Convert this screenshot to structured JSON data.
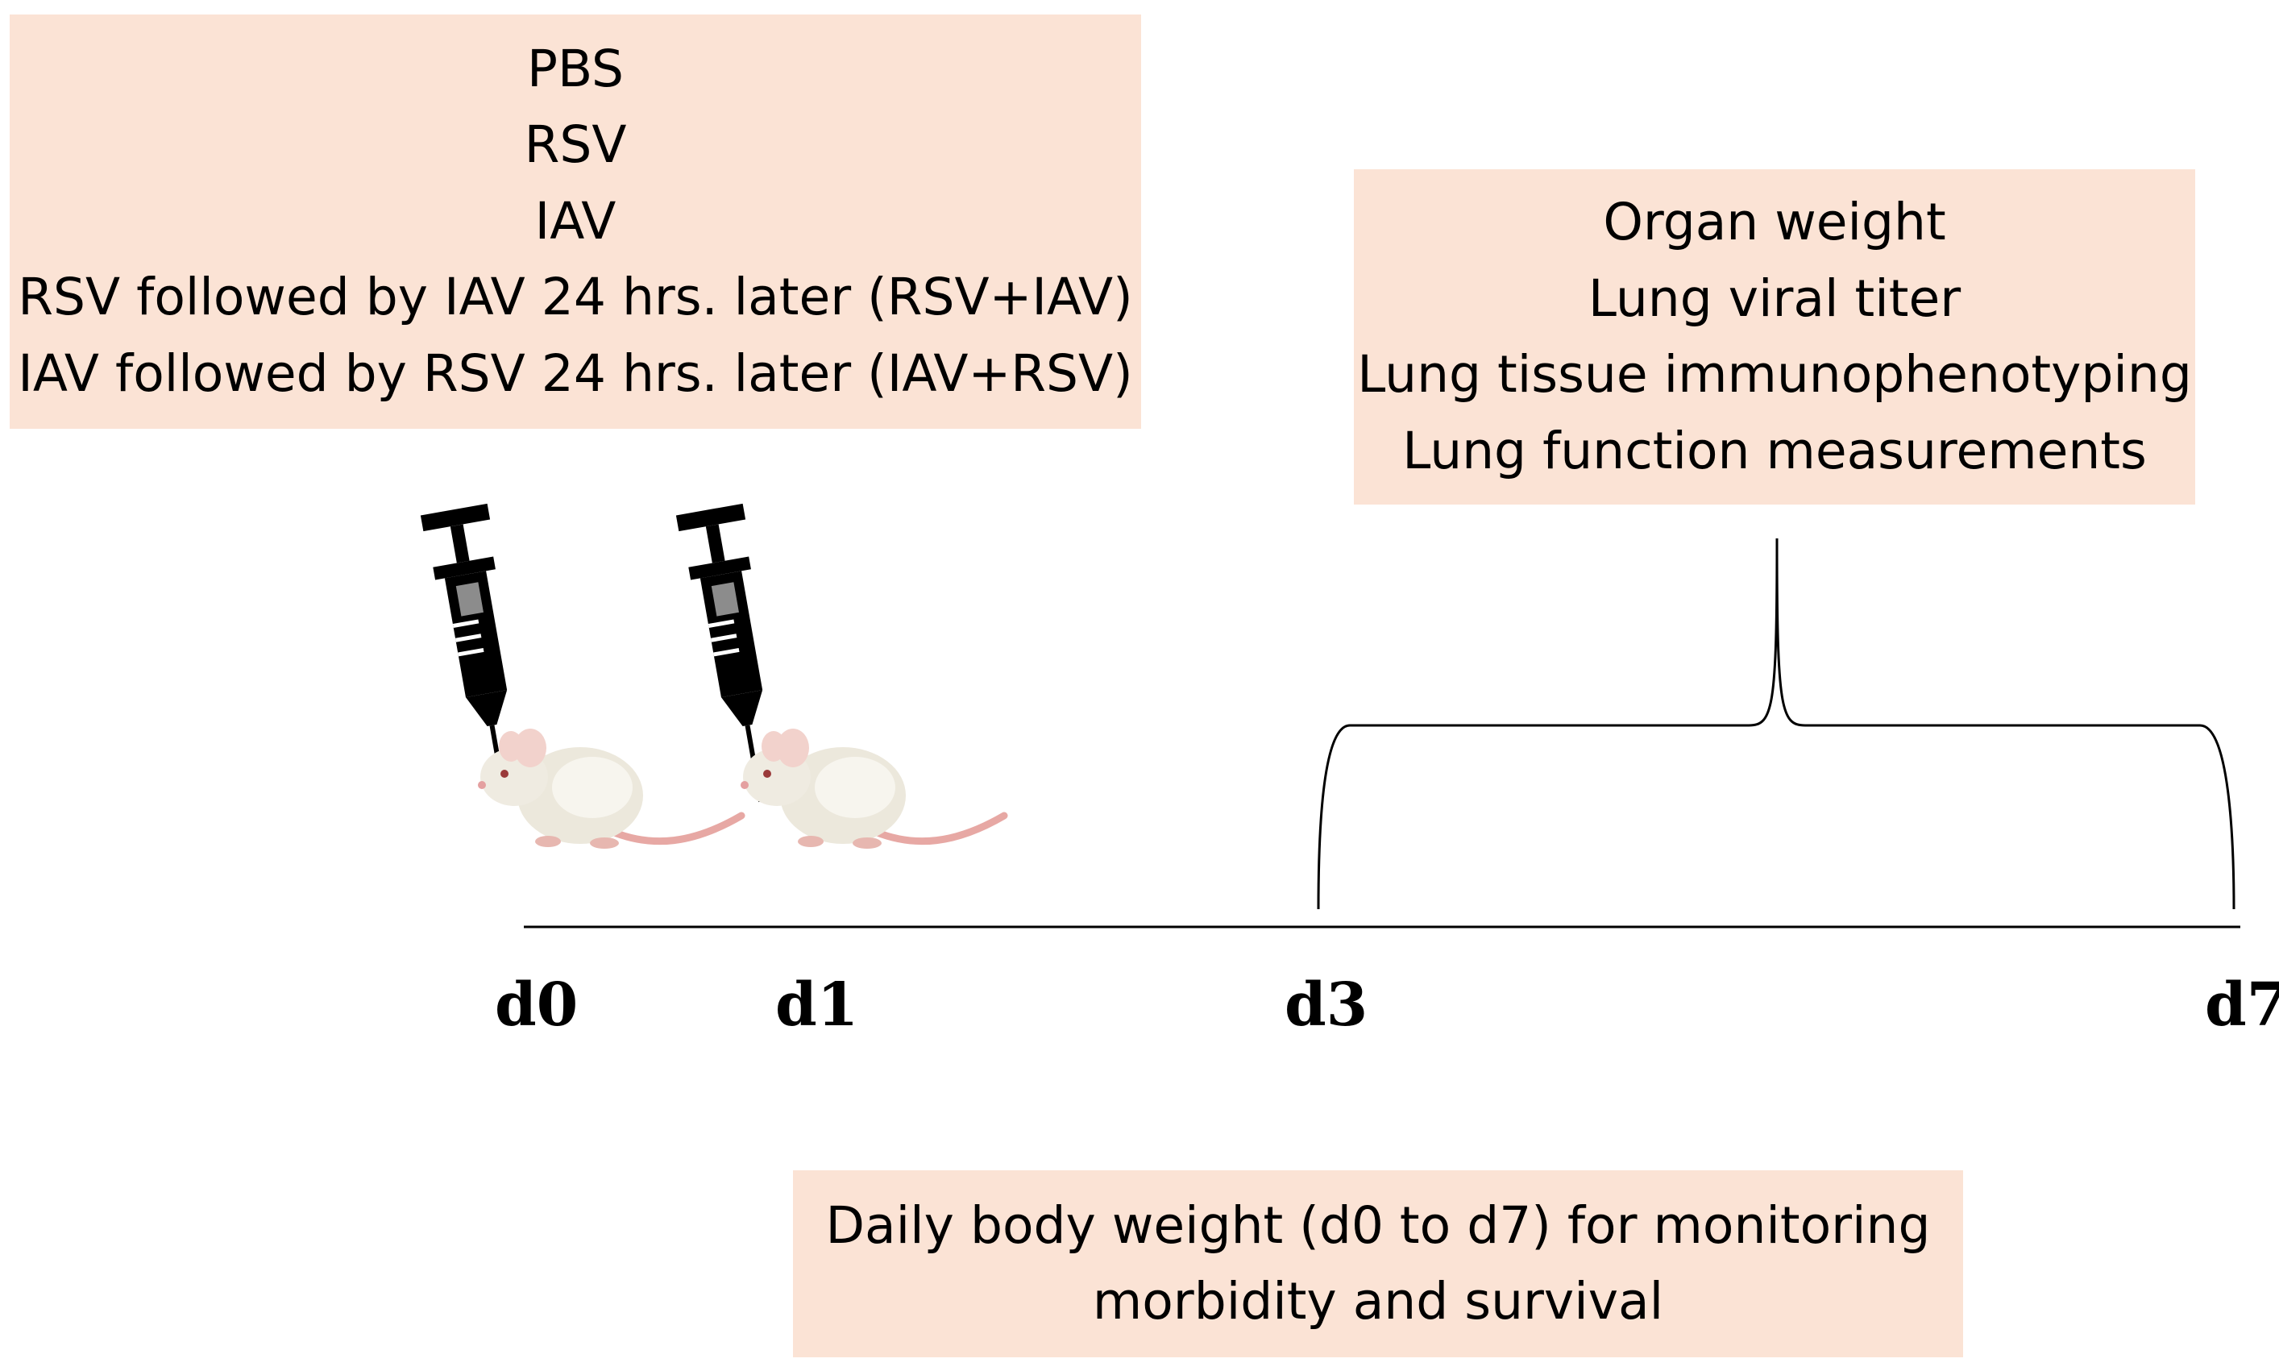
{
  "groups_box": {
    "lines": [
      "PBS",
      "RSV",
      "IAV",
      "RSV followed by IAV 24 hrs. later (RSV+IAV)",
      "IAV followed by RSV 24 hrs. later (IAV+RSV)"
    ]
  },
  "readouts_box": {
    "lines": [
      "Organ weight",
      "Lung viral titer",
      "Lung tissue immunophenotyping",
      "Lung function measurements"
    ]
  },
  "monitor_box": {
    "lines": [
      "Daily body weight (d0 to d7) for monitoring",
      "morbidity and survival"
    ]
  },
  "timeline": {
    "days": [
      "d0",
      "d1",
      "d3",
      "d7"
    ]
  },
  "icons": [
    "syringe-icon",
    "mouse-icon"
  ],
  "colors": {
    "box_fill": "#fbe3d5"
  }
}
